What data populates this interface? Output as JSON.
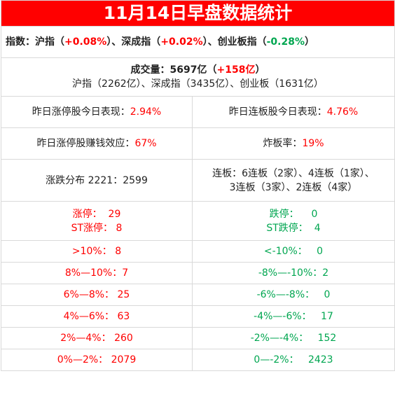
{
  "title": "11月14日早盘数据统计",
  "indices": {
    "label": "指数：",
    "sh_name": "沪指（",
    "sh_change": "+0.08%",
    "sz_name": "）、深成指（",
    "sz_change": "+0.02%",
    "cy_name": "）、创业板指（",
    "cy_change": "-0.28%",
    "close": "）"
  },
  "volume": {
    "label": "成交量：5697亿（",
    "change": "+158亿",
    "close": "）",
    "detail": "沪指（2262亿）、深成指（3435亿）、创业板（1631亿）"
  },
  "perf": {
    "left_label": "昨日涨停股今日表现：",
    "left_value": "2.94%",
    "right_label": "昨日连板股今日表现：",
    "right_value": "4.76%"
  },
  "effect": {
    "left_label": "昨日涨停股赚钱效应：",
    "left_value": "67%",
    "right_label": "炸板率：",
    "right_value": "19%"
  },
  "distribution": {
    "left": "涨跌分布 2221：2599",
    "right_line1": "连板：6连板（2家）、4连板（1家）、",
    "right_line2": "3连板（3家）、2连板（4家）"
  },
  "limits": {
    "up_label": "涨停：",
    "up_value": "29",
    "st_up_label": "ST涨停：",
    "st_up_value": "8",
    "down_label": "跌停：",
    "down_value": "0",
    "st_down_label": "ST跌停：",
    "st_down_value": "4"
  },
  "ranges": [
    {
      "up_label": ">10%：",
      "up_value": "8",
      "down_label": "<-10%：",
      "down_value": "0"
    },
    {
      "up_label": "8%—10%：",
      "up_value": "7",
      "down_label": "-8%—-10%：",
      "down_value": "2"
    },
    {
      "up_label": "6%—8%：",
      "up_value": "25",
      "down_label": "-6%—-8%：",
      "down_value": "0"
    },
    {
      "up_label": "4%—6%：",
      "up_value": "63",
      "down_label": "-4%—-6%：",
      "down_value": "17"
    },
    {
      "up_label": "2%—4%：",
      "up_value": "260",
      "down_label": "-2%—-4%：",
      "down_value": "152"
    },
    {
      "up_label": "0%—2%：",
      "up_value": "2079",
      "down_label": "0—-2%：",
      "down_value": "2423"
    }
  ],
  "colors": {
    "title_bg": "#ff0000",
    "up": "#ff0000",
    "down": "#00a650"
  }
}
